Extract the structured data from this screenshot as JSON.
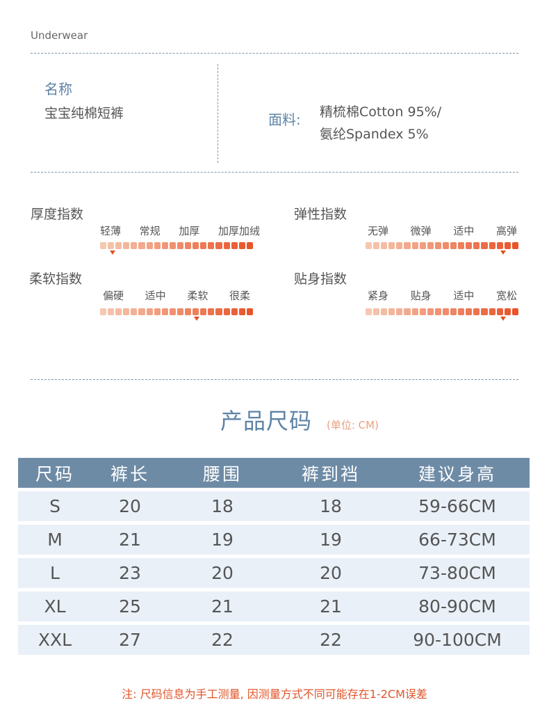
{
  "brand": "Underwear",
  "name": {
    "label": "名称",
    "value": "宝宝纯棉短裤"
  },
  "fabric": {
    "label": "面料:",
    "line1": "精梳棉Cotton 95%/",
    "line2": "氨纶Spandex 5%"
  },
  "indices": [
    {
      "title": "厚度指数",
      "labels": [
        "轻薄",
        "常规",
        "加厚",
        "加厚加绒"
      ],
      "level": 0.08
    },
    {
      "title": "弹性指数",
      "labels": [
        "无弹",
        "微弹",
        "适中",
        "高弹"
      ],
      "level": 0.9
    },
    {
      "title": "柔软指数",
      "labels": [
        "偏硬",
        "适中",
        "柔软",
        "很柔"
      ],
      "level": 0.63
    },
    {
      "title": "贴身指数",
      "labels": [
        "紧身",
        "贴身",
        "适中",
        "宽松"
      ],
      "level": 0.9
    }
  ],
  "size_chart": {
    "title": "产品尺码",
    "unit": "(单位: CM)",
    "headers": [
      "尺码",
      "裤长",
      "腰围",
      "裤到裆",
      "建议身高"
    ],
    "rows": [
      [
        "S",
        "20",
        "18",
        "18",
        "59-66CM"
      ],
      [
        "M",
        "21",
        "19",
        "19",
        "66-73CM"
      ],
      [
        "L",
        "23",
        "20",
        "20",
        "73-80CM"
      ],
      [
        "XL",
        "25",
        "21",
        "21",
        "80-90CM"
      ],
      [
        "XXL",
        "27",
        "22",
        "22",
        "90-100CM"
      ]
    ]
  },
  "note": "注: 尺码信息为手工测量, 因测量方式不同可能存在1-2CM误差",
  "colors": {
    "accent_blue": "#5d83a6",
    "header_bg": "#6e8ba6",
    "row_bg": "#e9f0f8",
    "bar_light": "#f6c8b0",
    "bar_dark": "#e9542a",
    "note": "#e0542a"
  }
}
